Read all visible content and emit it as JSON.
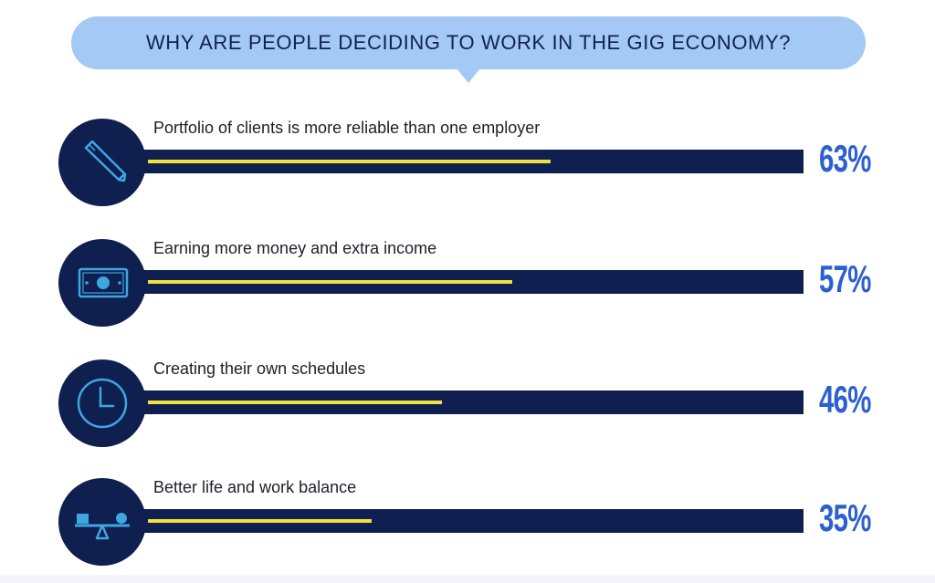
{
  "title": "WHY ARE PEOPLE DECIDING TO WORK IN THE GIG ECONOMY?",
  "colors": {
    "bubble": "#a3c9f4",
    "navy": "#0f1f50",
    "fill": "#f2e23f",
    "percent": "#2c5fd0",
    "icon": "#3ea7e0"
  },
  "rows": [
    {
      "label": "Portfolio of clients is more reliable than one employer",
      "value_text": "63%",
      "icon": "pencil-icon"
    },
    {
      "label": "Earning more money and extra income",
      "value_text": "57%",
      "icon": "banknote-icon"
    },
    {
      "label": "Creating their own schedules",
      "value_text": "46%",
      "icon": "clock-icon"
    },
    {
      "label": "Better life and work balance",
      "value_text": "35%",
      "icon": "balance-scale-icon"
    }
  ],
  "chart_data": {
    "type": "bar",
    "title": "WHY ARE PEOPLE DECIDING TO WORK IN THE GIG ECONOMY?",
    "categories": [
      "Portfolio of clients is more reliable than one employer",
      "Earning more money and extra income",
      "Creating their own schedules",
      "Better life and work balance"
    ],
    "values": [
      63,
      57,
      46,
      35
    ],
    "unit": "%",
    "orientation": "horizontal",
    "grid": false,
    "legend": "none"
  }
}
